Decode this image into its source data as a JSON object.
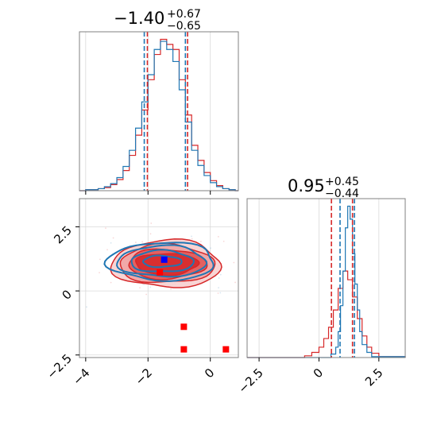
{
  "colors": {
    "red": "#d62728",
    "blue": "#1f77b4",
    "marker_red": "#ff0000",
    "marker_blue": "#0000ff",
    "red_fill_light": "#f0a0a0",
    "red_fill_mid": "#e05555",
    "red_fill_dark": "#d62728"
  },
  "titles": {
    "p1": {
      "median": "−1.40",
      "plus": "+0.67",
      "minus": "−0.65"
    },
    "p2": {
      "median": "0.95",
      "plus": "+0.45",
      "minus": "−0.44"
    }
  },
  "chart_data": [
    {
      "type": "histogram",
      "panel": "top-left marginal (param 1)",
      "xlim": [
        -4.2,
        0.9
      ],
      "x_ticks": [
        -4,
        -2,
        0
      ],
      "quantile_lines": {
        "blue": [
          -2.12,
          -0.8
        ],
        "red": [
          -2.02,
          -0.73
        ]
      },
      "series": [
        {
          "color": "red",
          "x": [
            -4.2,
            -4.0,
            -3.8,
            -3.6,
            -3.4,
            -3.2,
            -3.0,
            -2.8,
            -2.6,
            -2.4,
            -2.2,
            -2.0,
            -1.8,
            -1.6,
            -1.4,
            -1.2,
            -1.0,
            -0.8,
            -0.6,
            -0.4,
            -0.2,
            0.0,
            0.2,
            0.4,
            0.6,
            0.8
          ],
          "values": [
            0,
            1,
            1,
            2,
            3,
            6,
            11,
            20,
            35,
            55,
            80,
            110,
            135,
            150,
            145,
            140,
            110,
            75,
            45,
            30,
            18,
            10,
            5,
            2,
            1,
            0
          ]
        },
        {
          "color": "blue",
          "x": [
            -4.2,
            -4.0,
            -3.8,
            -3.6,
            -3.4,
            -3.2,
            -3.0,
            -2.8,
            -2.6,
            -2.4,
            -2.2,
            -2.0,
            -1.8,
            -1.6,
            -1.4,
            -1.2,
            -1.0,
            -0.8,
            -0.6,
            -0.4,
            -0.2,
            0.0,
            0.2,
            0.4,
            0.6,
            0.8
          ],
          "values": [
            0,
            1,
            1,
            2,
            4,
            7,
            13,
            24,
            40,
            62,
            88,
            115,
            140,
            148,
            140,
            128,
            100,
            68,
            40,
            25,
            15,
            8,
            4,
            2,
            1,
            0
          ]
        }
      ]
    },
    {
      "type": "histogram",
      "panel": "bottom-right marginal (param 2)",
      "xlim": [
        -3.0,
        3.6
      ],
      "x_ticks": [
        -2.5,
        0.0,
        2.5
      ],
      "quantile_lines": {
        "red": [
          0.52,
          1.4
        ],
        "blue": [
          0.88,
          1.48
        ]
      },
      "series": [
        {
          "color": "red",
          "x": [
            -3.0,
            -1.0,
            -0.6,
            -0.3,
            0.0,
            0.2,
            0.4,
            0.6,
            0.8,
            1.0,
            1.2,
            1.4,
            1.6,
            1.8,
            2.0,
            2.2,
            2.5,
            3.6
          ],
          "values": [
            0,
            0,
            2,
            6,
            12,
            22,
            35,
            55,
            80,
            100,
            90,
            70,
            45,
            25,
            12,
            5,
            1,
            0
          ]
        },
        {
          "color": "blue",
          "x": [
            -3.0,
            0.3,
            0.5,
            0.7,
            0.8,
            0.9,
            1.0,
            1.1,
            1.2,
            1.3,
            1.4,
            1.5,
            1.6,
            1.7,
            1.8,
            2.0,
            2.2,
            3.6
          ],
          "values": [
            0,
            0,
            4,
            12,
            30,
            60,
            100,
            150,
            175,
            160,
            120,
            85,
            55,
            30,
            15,
            6,
            1,
            0
          ]
        }
      ]
    },
    {
      "type": "scatter",
      "panel": "bottom-left 2D (param 1 vs param 2)",
      "xlim": [
        -4.2,
        0.9
      ],
      "ylim": [
        -2.6,
        3.6
      ],
      "x_ticks": [
        -4,
        -2,
        0
      ],
      "y_ticks": [
        -2.5,
        0.0,
        2.5
      ],
      "contours": {
        "red_center": [
          -1.4,
          1.05
        ],
        "red_radii": [
          [
            1.0,
            0.42
          ],
          [
            1.25,
            0.58
          ],
          [
            1.52,
            0.75
          ],
          [
            1.75,
            0.92
          ]
        ],
        "blue_center": [
          -1.55,
          1.15
        ],
        "blue_radii": [
          [
            0.62,
            0.22
          ],
          [
            1.0,
            0.42
          ],
          [
            1.42,
            0.6
          ],
          [
            1.72,
            0.74
          ]
        ]
      },
      "markers": [
        {
          "color": "marker_blue",
          "x": -1.48,
          "y": 1.22
        },
        {
          "color": "marker_red",
          "x": -1.62,
          "y": 0.72
        },
        {
          "color": "marker_red",
          "x": -0.85,
          "y": -1.4
        },
        {
          "color": "marker_red",
          "x": -0.85,
          "y": -2.28
        },
        {
          "color": "marker_red",
          "x": 0.5,
          "y": -2.28
        }
      ]
    }
  ]
}
